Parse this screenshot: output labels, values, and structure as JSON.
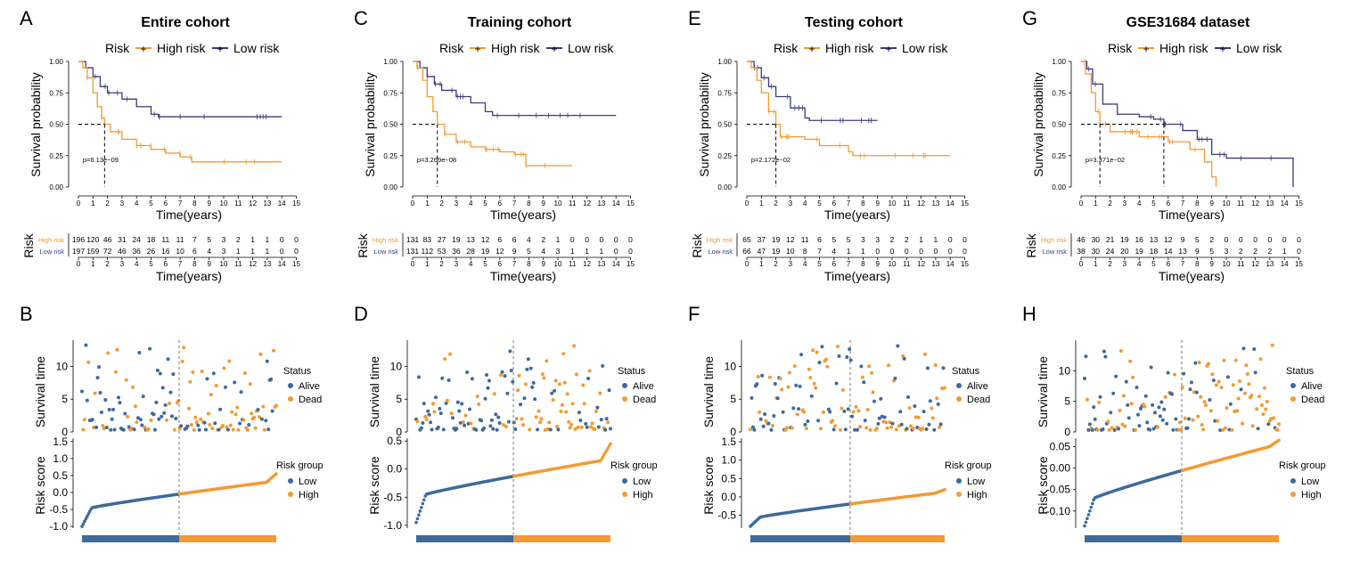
{
  "colors": {
    "high": "#F39A32",
    "low": "#3B3B7E",
    "alive": "#3E6A9A",
    "dead": "#F39A32",
    "lowgrp": "#3E6A9A",
    "highgrp": "#F39A32"
  },
  "labels": {
    "risk": "Risk",
    "high_risk": "High risk",
    "low_risk": "Low risk",
    "survival_probability": "Survival probability",
    "time_years": "Time(years)",
    "survival_time": "Survival time",
    "risk_score": "Risk score",
    "status": "Status",
    "alive": "Alive",
    "dead": "Dead",
    "risk_group": "Risk group",
    "low": "Low",
    "high": "High"
  },
  "panels": [
    {
      "km_letter": "A",
      "scatter_letter": "B",
      "title": "Entire cohort",
      "pvalue": "p=6.13e−09",
      "km_max_time": 14,
      "median_high": 1.8,
      "median_low": null,
      "km_high": [
        [
          0,
          1
        ],
        [
          0.3,
          0.95
        ],
        [
          0.6,
          0.87
        ],
        [
          1,
          0.75
        ],
        [
          1.3,
          0.64
        ],
        [
          1.6,
          0.55
        ],
        [
          1.8,
          0.5
        ],
        [
          2.2,
          0.44
        ],
        [
          3,
          0.38
        ],
        [
          4,
          0.33
        ],
        [
          5,
          0.3
        ],
        [
          6,
          0.27
        ],
        [
          7,
          0.24
        ],
        [
          7.8,
          0.2
        ],
        [
          14,
          0.2
        ]
      ],
      "km_low": [
        [
          0,
          1
        ],
        [
          0.5,
          0.95
        ],
        [
          1,
          0.88
        ],
        [
          1.5,
          0.8
        ],
        [
          2,
          0.75
        ],
        [
          3,
          0.7
        ],
        [
          4,
          0.64
        ],
        [
          5,
          0.58
        ],
        [
          5.5,
          0.56
        ],
        [
          14,
          0.56
        ]
      ],
      "high_risk_counts": [
        196,
        120,
        46,
        31,
        24,
        18,
        11,
        11,
        7,
        5,
        3,
        2,
        1,
        1,
        0,
        0
      ],
      "low_risk_counts": [
        197,
        159,
        72,
        46,
        36,
        26,
        16,
        10,
        6,
        4,
        3,
        1,
        1,
        1,
        0,
        0
      ],
      "surv_yticks": [
        0,
        5,
        10
      ],
      "score_yticks": [
        -1.0,
        -0.5,
        0.0,
        0.5,
        1.0,
        1.5
      ],
      "score_ylim": [
        -1.05,
        1.6
      ],
      "surv_ylim": [
        0,
        14
      ],
      "score_min": -1.0,
      "score_mid_start": -0.45,
      "score_mid_end": 0.3,
      "score_max": 0.55,
      "score_split": -0.1
    },
    {
      "km_letter": "C",
      "scatter_letter": "D",
      "title": "Training cohort",
      "pvalue": "p=3.269e−08",
      "km_max_time": 14,
      "median_high": 1.7,
      "median_low": null,
      "km_high": [
        [
          0,
          1
        ],
        [
          0.3,
          0.95
        ],
        [
          0.7,
          0.85
        ],
        [
          1,
          0.72
        ],
        [
          1.4,
          0.6
        ],
        [
          1.7,
          0.5
        ],
        [
          2.2,
          0.42
        ],
        [
          3,
          0.36
        ],
        [
          4,
          0.32
        ],
        [
          5,
          0.3
        ],
        [
          6,
          0.28
        ],
        [
          7,
          0.26
        ],
        [
          7.8,
          0.17
        ],
        [
          11,
          0.17
        ]
      ],
      "km_low": [
        [
          0,
          1
        ],
        [
          0.5,
          0.95
        ],
        [
          1,
          0.88
        ],
        [
          1.5,
          0.82
        ],
        [
          2,
          0.77
        ],
        [
          3,
          0.72
        ],
        [
          4,
          0.67
        ],
        [
          5,
          0.6
        ],
        [
          5.5,
          0.57
        ],
        [
          14,
          0.57
        ]
      ],
      "high_risk_counts": [
        131,
        83,
        27,
        19,
        13,
        12,
        6,
        6,
        4,
        2,
        1,
        0,
        0,
        0,
        0,
        0
      ],
      "low_risk_counts": [
        131,
        112,
        53,
        36,
        28,
        19,
        12,
        9,
        5,
        4,
        3,
        1,
        1,
        1,
        0,
        0
      ],
      "surv_yticks": [
        0,
        5,
        10
      ],
      "score_yticks": [
        -1.0,
        -0.5,
        0.0,
        0.5
      ],
      "score_ylim": [
        -1.05,
        0.55
      ],
      "surv_ylim": [
        0,
        14
      ],
      "score_min": -0.95,
      "score_mid_start": -0.45,
      "score_mid_end": 0.15,
      "score_max": 0.45,
      "score_split": -0.13
    },
    {
      "km_letter": "E",
      "scatter_letter": "F",
      "title": "Testing cohort",
      "pvalue": "p=2.172e−02",
      "km_max_time": 14,
      "median_high": 2.0,
      "median_low": null,
      "km_high": [
        [
          0,
          1
        ],
        [
          0.3,
          0.95
        ],
        [
          0.7,
          0.85
        ],
        [
          1,
          0.75
        ],
        [
          1.5,
          0.6
        ],
        [
          2,
          0.5
        ],
        [
          2.3,
          0.4
        ],
        [
          4,
          0.38
        ],
        [
          5,
          0.33
        ],
        [
          7,
          0.28
        ],
        [
          7.3,
          0.25
        ],
        [
          14,
          0.25
        ]
      ],
      "km_low": [
        [
          0,
          1
        ],
        [
          0.5,
          0.95
        ],
        [
          1,
          0.87
        ],
        [
          1.5,
          0.8
        ],
        [
          2,
          0.72
        ],
        [
          3,
          0.63
        ],
        [
          4,
          0.55
        ],
        [
          4.3,
          0.53
        ],
        [
          9,
          0.53
        ]
      ],
      "high_risk_counts": [
        65,
        37,
        19,
        12,
        11,
        6,
        5,
        5,
        3,
        3,
        2,
        2,
        1,
        1,
        0,
        0
      ],
      "low_risk_counts": [
        66,
        47,
        19,
        10,
        8,
        7,
        4,
        1,
        1,
        0,
        0,
        0,
        0,
        0,
        0,
        0
      ],
      "surv_yticks": [
        0,
        5,
        10
      ],
      "score_yticks": [
        -0.5,
        0.0,
        0.5,
        1.0,
        1.5
      ],
      "score_ylim": [
        -0.85,
        1.6
      ],
      "surv_ylim": [
        0,
        14
      ],
      "score_min": -0.8,
      "score_mid_start": -0.55,
      "score_mid_end": 0.1,
      "score_max": 0.2,
      "score_split": -0.12
    },
    {
      "km_letter": "G",
      "scatter_letter": "H",
      "title": "GSE31684 dataset",
      "pvalue": "p=3.371e−02",
      "km_max_time": 14.6,
      "median_high": 1.3,
      "median_low": 5.7,
      "km_high": [
        [
          0,
          1
        ],
        [
          0.3,
          0.9
        ],
        [
          0.7,
          0.75
        ],
        [
          1,
          0.6
        ],
        [
          1.3,
          0.5
        ],
        [
          2,
          0.44
        ],
        [
          4,
          0.4
        ],
        [
          6,
          0.36
        ],
        [
          7.5,
          0.3
        ],
        [
          8.5,
          0.2
        ],
        [
          9,
          0.08
        ],
        [
          9.3,
          0
        ]
      ],
      "km_low": [
        [
          0,
          1
        ],
        [
          0.4,
          0.94
        ],
        [
          0.8,
          0.82
        ],
        [
          1.5,
          0.66
        ],
        [
          2.5,
          0.58
        ],
        [
          4,
          0.56
        ],
        [
          5,
          0.54
        ],
        [
          5.7,
          0.5
        ],
        [
          7,
          0.45
        ],
        [
          8,
          0.38
        ],
        [
          9,
          0.26
        ],
        [
          10,
          0.23
        ],
        [
          14.6,
          0.23
        ],
        [
          14.6,
          0
        ]
      ],
      "high_risk_counts": [
        46,
        30,
        21,
        19,
        16,
        13,
        12,
        9,
        5,
        2,
        0,
        0,
        0,
        0,
        0,
        0
      ],
      "low_risk_counts": [
        38,
        30,
        24,
        20,
        19,
        18,
        14,
        13,
        9,
        5,
        3,
        2,
        2,
        2,
        1,
        0
      ],
      "surv_yticks": [
        0,
        5,
        10
      ],
      "score_yticks": [
        -0.1,
        -0.05,
        0.0,
        0.05
      ],
      "score_ylim": [
        -0.14,
        0.07
      ],
      "surv_ylim": [
        0,
        15
      ],
      "score_min": -0.135,
      "score_mid_start": -0.07,
      "score_mid_end": 0.05,
      "score_max": 0.065,
      "score_split": -0.015
    }
  ],
  "chart_data": [
    {
      "type": "line",
      "title": "Entire cohort",
      "xlabel": "Time(years)",
      "ylabel": "Survival probability",
      "xlim": [
        0,
        15
      ],
      "ylim": [
        0,
        1
      ],
      "series": [
        {
          "name": "High risk"
        },
        {
          "name": "Low risk"
        }
      ],
      "pvalue": "p=6.13e−09"
    },
    {
      "type": "line",
      "title": "Training cohort",
      "xlabel": "Time(years)",
      "ylabel": "Survival probability",
      "xlim": [
        0,
        15
      ],
      "ylim": [
        0,
        1
      ],
      "series": [
        {
          "name": "High risk"
        },
        {
          "name": "Low risk"
        }
      ],
      "pvalue": "p=3.269e−08"
    },
    {
      "type": "line",
      "title": "Testing cohort",
      "xlabel": "Time(years)",
      "ylabel": "Survival probability",
      "xlim": [
        0,
        15
      ],
      "ylim": [
        0,
        1
      ],
      "series": [
        {
          "name": "High risk"
        },
        {
          "name": "Low risk"
        }
      ],
      "pvalue": "p=2.172e−02"
    },
    {
      "type": "line",
      "title": "GSE31684 dataset",
      "xlabel": "Time(years)",
      "ylabel": "Survival probability",
      "xlim": [
        0,
        15
      ],
      "ylim": [
        0,
        1
      ],
      "series": [
        {
          "name": "High risk"
        },
        {
          "name": "Low risk"
        }
      ],
      "pvalue": "p=3.371e−02"
    }
  ]
}
